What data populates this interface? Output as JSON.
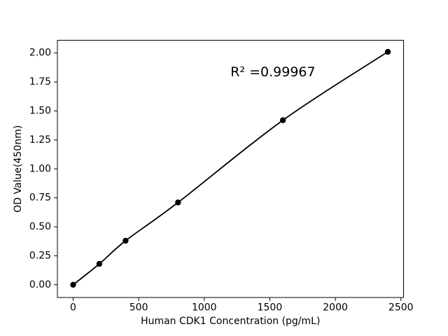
{
  "chart_data": {
    "type": "scatter",
    "title": "",
    "xlabel": "Human CDK1 Concentration (pg/mL)",
    "ylabel": "OD Value(450nm)",
    "x": [
      0,
      200,
      400,
      800,
      1600,
      2400
    ],
    "y": [
      0.0,
      0.18,
      0.38,
      0.71,
      1.42,
      2.01
    ],
    "line": "smooth-fit-through-points",
    "annotation": {
      "text": "R² =0.99967",
      "x": 1200,
      "y": 1.8
    },
    "xticks": [
      0,
      500,
      1000,
      1500,
      2000,
      2500
    ],
    "xtick_labels": [
      "0",
      "500",
      "1000",
      "1500",
      "2000",
      "2500"
    ],
    "yticks": [
      0.0,
      0.25,
      0.5,
      0.75,
      1.0,
      1.25,
      1.5,
      1.75,
      2.0
    ],
    "ytick_labels": [
      "0.00",
      "0.25",
      "0.50",
      "0.75",
      "1.00",
      "1.25",
      "1.50",
      "1.75",
      "2.00"
    ],
    "xlim": [
      -120,
      2520
    ],
    "ylim": [
      -0.11,
      2.11
    ],
    "grid": false,
    "legend": null,
    "colors": {
      "line": "#000000",
      "marker": "#000000",
      "axes": "#000000",
      "background": "#ffffff"
    }
  }
}
